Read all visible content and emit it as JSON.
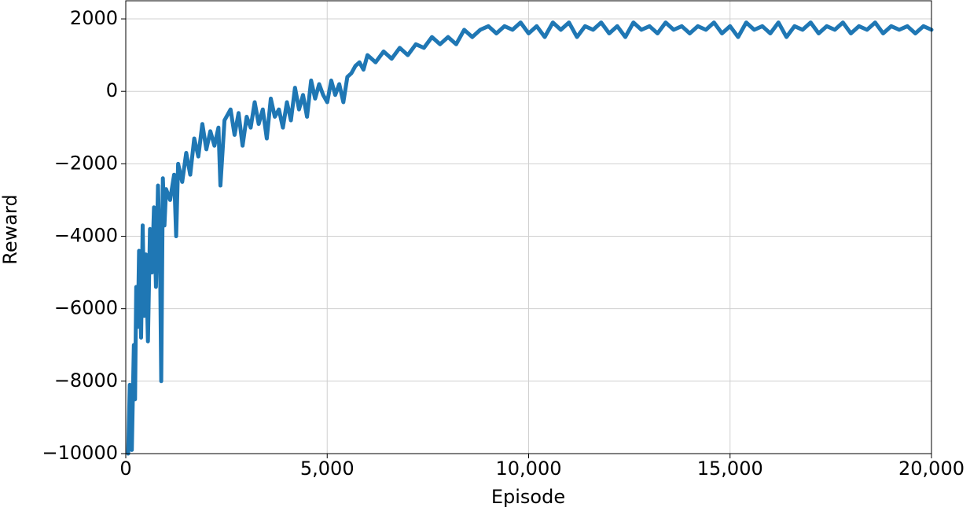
{
  "chart_data": {
    "type": "line",
    "x_label": "Episode",
    "y_label": "Reward",
    "x": [
      60,
      100,
      150,
      200,
      230,
      260,
      300,
      330,
      380,
      420,
      460,
      500,
      550,
      600,
      650,
      700,
      750,
      800,
      850,
      880,
      920,
      960,
      1000,
      1100,
      1200,
      1250,
      1300,
      1400,
      1500,
      1600,
      1700,
      1800,
      1900,
      2000,
      2100,
      2200,
      2300,
      2350,
      2450,
      2600,
      2700,
      2800,
      2900,
      3000,
      3100,
      3200,
      3300,
      3400,
      3500,
      3600,
      3700,
      3800,
      3900,
      4000,
      4100,
      4200,
      4300,
      4400,
      4500,
      4600,
      4700,
      4800,
      4900,
      5000,
      5100,
      5200,
      5300,
      5400,
      5500,
      5600,
      5700,
      5800,
      5900,
      6000,
      6200,
      6400,
      6600,
      6800,
      7000,
      7200,
      7400,
      7600,
      7800,
      8000,
      8200,
      8400,
      8600,
      8800,
      9000,
      9200,
      9400,
      9600,
      9800,
      10000,
      10200,
      10400,
      10600,
      10800,
      11000,
      11200,
      11400,
      11600,
      11800,
      12000,
      12200,
      12400,
      12600,
      12800,
      13000,
      13200,
      13400,
      13600,
      13800,
      14000,
      14200,
      14400,
      14600,
      14800,
      15000,
      15200,
      15400,
      15600,
      15800,
      16000,
      16200,
      16400,
      16600,
      16800,
      17000,
      17200,
      17400,
      17600,
      17800,
      18000,
      18200,
      18400,
      18600,
      18800,
      19000,
      19200,
      19400,
      19600,
      19800,
      20000
    ],
    "series": [
      {
        "color": "#1f77b4",
        "values": [
          -10000,
          -8100,
          -9900,
          -7000,
          -8500,
          -5400,
          -6500,
          -4400,
          -6800,
          -3700,
          -6200,
          -4500,
          -6900,
          -3800,
          -5000,
          -3200,
          -5400,
          -2600,
          -4600,
          -8000,
          -2400,
          -3700,
          -2700,
          -3000,
          -2300,
          -4000,
          -2000,
          -2500,
          -1700,
          -2300,
          -1300,
          -1800,
          -900,
          -1600,
          -1100,
          -1500,
          -1000,
          -2600,
          -800,
          -500,
          -1200,
          -600,
          -1500,
          -700,
          -1000,
          -300,
          -900,
          -500,
          -1300,
          -200,
          -700,
          -500,
          -1000,
          -300,
          -800,
          100,
          -500,
          -100,
          -700,
          300,
          -200,
          200,
          -100,
          -300,
          300,
          -100,
          200,
          -300,
          400,
          500,
          700,
          800,
          600,
          1000,
          800,
          1100,
          900,
          1200,
          1000,
          1300,
          1200,
          1500,
          1300,
          1500,
          1300,
          1700,
          1500,
          1700,
          1800,
          1600,
          1800,
          1700,
          1900,
          1600,
          1800,
          1500,
          1900,
          1700,
          1900,
          1500,
          1800,
          1700,
          1900,
          1600,
          1800,
          1500,
          1900,
          1700,
          1800,
          1600,
          1900,
          1700,
          1800,
          1600,
          1800,
          1700,
          1900,
          1600,
          1800,
          1500,
          1900,
          1700,
          1800,
          1600,
          1900,
          1500,
          1800,
          1700,
          1900,
          1600,
          1800,
          1700,
          1900,
          1600,
          1800,
          1700,
          1900,
          1600,
          1800,
          1700,
          1800,
          1600,
          1800,
          1700
        ]
      }
    ],
    "xlim": [
      0,
      20000
    ],
    "xticks": [
      0,
      {
        "value": 5000,
        "label": "5,000"
      },
      {
        "value": 10000,
        "label": "10,000"
      },
      {
        "value": 15000,
        "label": "15,000"
      },
      {
        "value": 20000,
        "label": "20,000"
      }
    ],
    "ylim": [
      -10000,
      2500
    ],
    "yticks": [
      {
        "value": -10000,
        "label": "−10000"
      },
      {
        "value": -8000,
        "label": "−8000"
      },
      {
        "value": -6000,
        "label": "−6000"
      },
      {
        "value": -4000,
        "label": "−4000"
      },
      {
        "value": -2000,
        "label": "−2000"
      },
      0,
      2000
    ],
    "grid": true
  }
}
